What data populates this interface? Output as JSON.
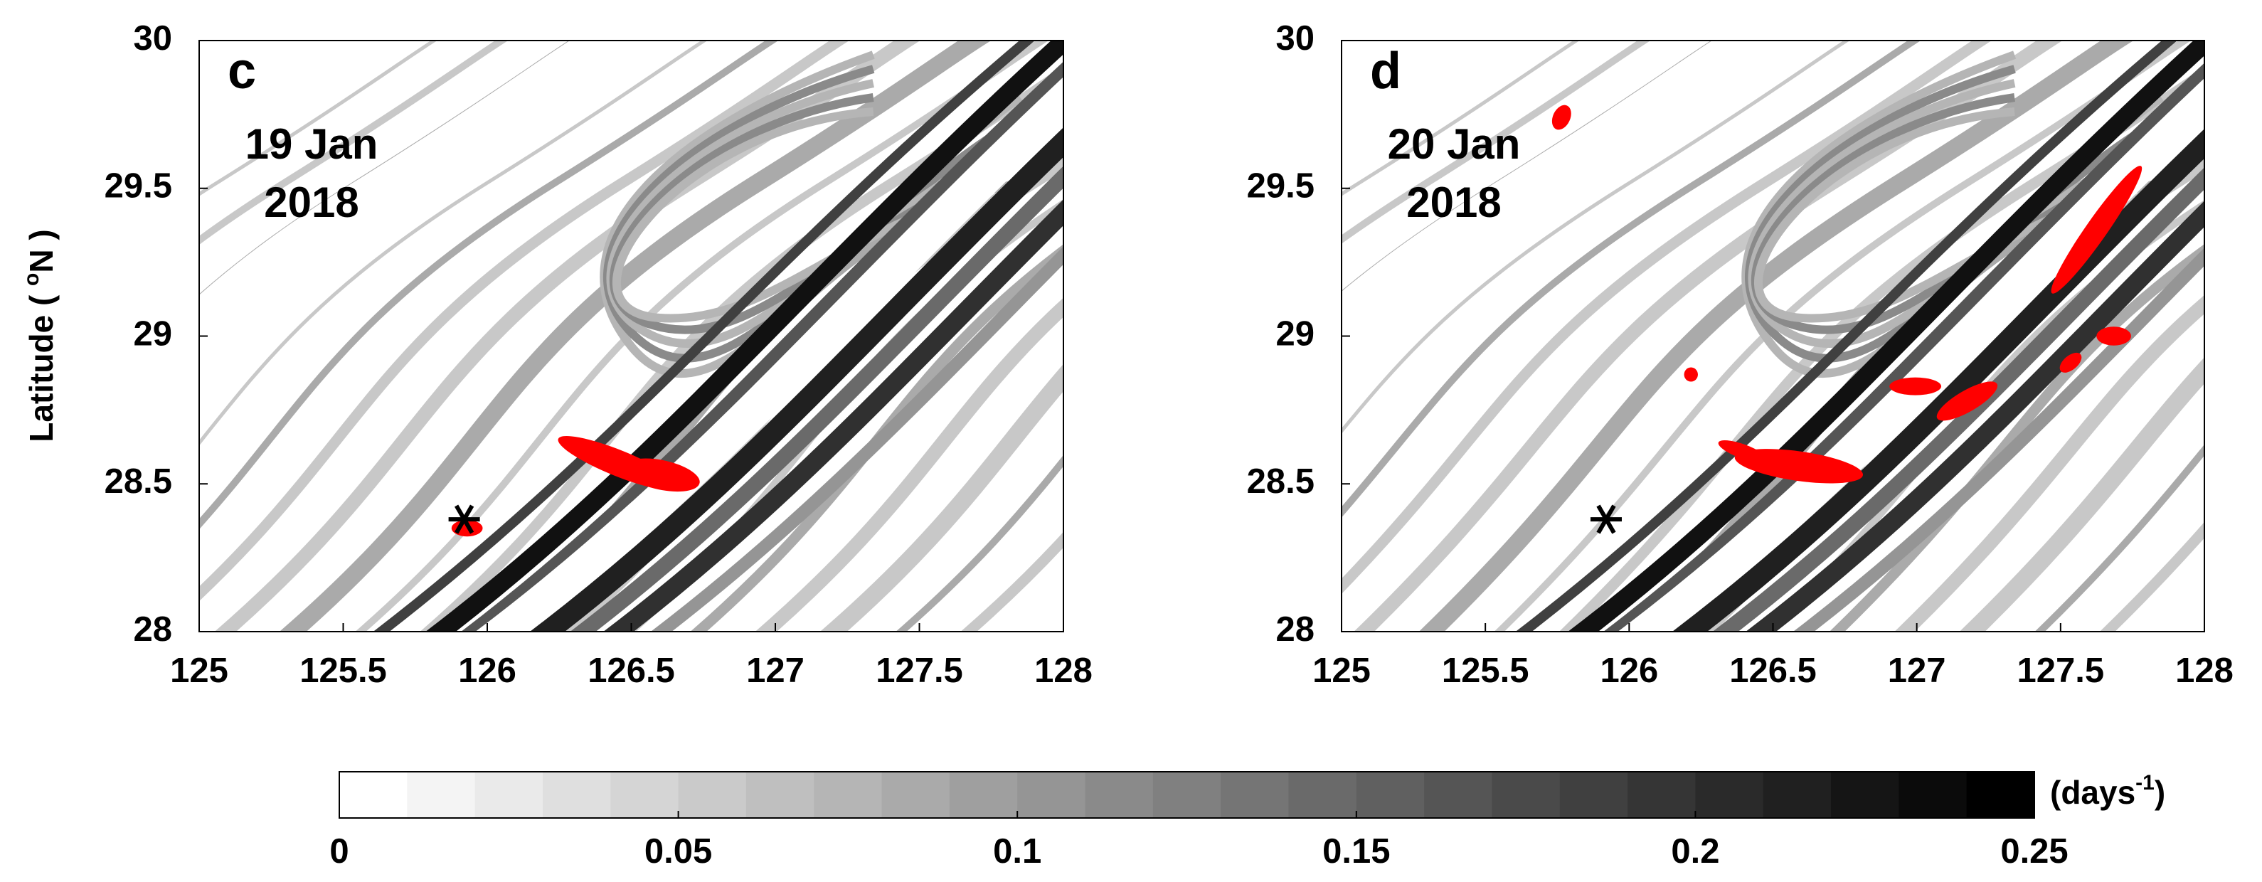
{
  "chart_data": [
    {
      "type": "map",
      "panel_label": "c",
      "annotation": [
        "19 Jan",
        "2018"
      ],
      "ylabel": [
        "Latitude ( ",
        "o",
        "N )"
      ],
      "xlim": [
        125,
        128
      ],
      "xticks": [
        125,
        125.5,
        126,
        126.5,
        127,
        127.5,
        128
      ],
      "ylim": [
        28,
        30
      ],
      "yticks": [
        28,
        28.5,
        29,
        29.5,
        30
      ],
      "marker": {
        "x": 125.92,
        "y": 28.38,
        "color": "#000000"
      },
      "patch_color": "#ff0000"
    },
    {
      "type": "map",
      "panel_label": "d",
      "annotation": [
        "20 Jan",
        "2018"
      ],
      "xlim": [
        125,
        128
      ],
      "xticks": [
        125,
        125.5,
        126,
        126.5,
        127,
        127.5,
        128
      ],
      "ylim": [
        28,
        30
      ],
      "yticks": [
        28,
        28.5,
        29,
        29.5,
        30
      ],
      "marker": {
        "x": 125.92,
        "y": 28.38,
        "color": "#000000"
      },
      "patch_color": "#ff0000"
    },
    {
      "type": "colorbar",
      "label": [
        "(days",
        "-1",
        ")"
      ],
      "clim": [
        0,
        0.25
      ],
      "cticks": [
        0,
        0.05,
        0.1,
        0.15,
        0.2,
        0.25
      ],
      "colors": [
        "#ffffff",
        "#f4f4f4",
        "#eaeaea",
        "#dfdfdf",
        "#d5d5d5",
        "#cacaca",
        "#bfbfbf",
        "#b5b5b5",
        "#aaaaaa",
        "#9f9f9f",
        "#959595",
        "#8a8a8a",
        "#808080",
        "#757575",
        "#6a6a6a",
        "#606060",
        "#555555",
        "#4a4a4a",
        "#404040",
        "#353535",
        "#2a2a2a",
        "#202020",
        "#151515",
        "#0b0b0b",
        "#000000"
      ]
    }
  ]
}
